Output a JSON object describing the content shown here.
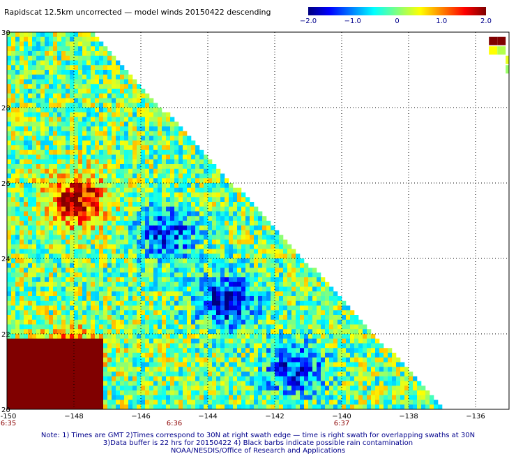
{
  "title": "Rapidscat 12.5km uncorrected — model winds 20150422 descending",
  "colorbar": {
    "labels": [
      "−2.0",
      "−1.0",
      "0",
      "1.0",
      "2.0"
    ],
    "values": [
      -2.0,
      -1.0,
      0,
      1.0,
      2.0
    ]
  },
  "chart_data": {
    "type": "heatmap",
    "title": "Rapidscat 12.5km uncorrected — model winds 20150422 descending",
    "xlim": [
      -150,
      -135
    ],
    "ylim": [
      20,
      30
    ],
    "x_ticks": [
      {
        "value": -150,
        "label": "-150"
      },
      {
        "value": -148,
        "label": "−148"
      },
      {
        "value": -146,
        "label": "−146"
      },
      {
        "value": -144,
        "label": "−144"
      },
      {
        "value": -142,
        "label": "−142"
      },
      {
        "value": -140,
        "label": "−140"
      },
      {
        "value": -138,
        "label": "−138"
      },
      {
        "value": -136,
        "label": "−136"
      }
    ],
    "y_ticks": [
      {
        "value": 30,
        "label": "30"
      },
      {
        "value": 28,
        "label": "28"
      },
      {
        "value": 26,
        "label": "26"
      },
      {
        "value": 24,
        "label": "24"
      },
      {
        "value": 22,
        "label": "22"
      },
      {
        "value": 20,
        "label": "20"
      }
    ],
    "time_labels": [
      {
        "lon": -150,
        "label": "6:35"
      },
      {
        "lon": -145,
        "label": "6:36"
      },
      {
        "lon": -140,
        "label": "6:37"
      }
    ],
    "color_range": [
      -2.0,
      2.0
    ],
    "grid": true,
    "swath_edge": [
      [
        -147.5,
        30
      ],
      [
        -136.9,
        20
      ]
    ],
    "features": [
      {
        "name": "strong positive",
        "center": [
          -148.3,
          21.3
        ],
        "value": 2.0
      },
      {
        "name": "positive patch",
        "center": [
          -148.0,
          25.5
        ],
        "value": 1.8
      },
      {
        "name": "negative patch",
        "center": [
          -143.5,
          22.8
        ],
        "value": -1.6
      },
      {
        "name": "negative patch",
        "center": [
          -141.5,
          21.0
        ],
        "value": -1.4
      },
      {
        "name": "negative patch",
        "center": [
          -145.3,
          24.6
        ],
        "value": -1.3
      }
    ]
  },
  "footer": {
    "line1": "Note: 1) Times are GMT 2)Times correspond to 30N at right swath edge — time is right swath for overlapping swaths at 30N",
    "line2": "3)Data buffer is 22 hrs for 20150422 4) Black barbs indicate possible rain contamination",
    "line3": "NOAA/NESDIS/Office of Research and Applications"
  }
}
